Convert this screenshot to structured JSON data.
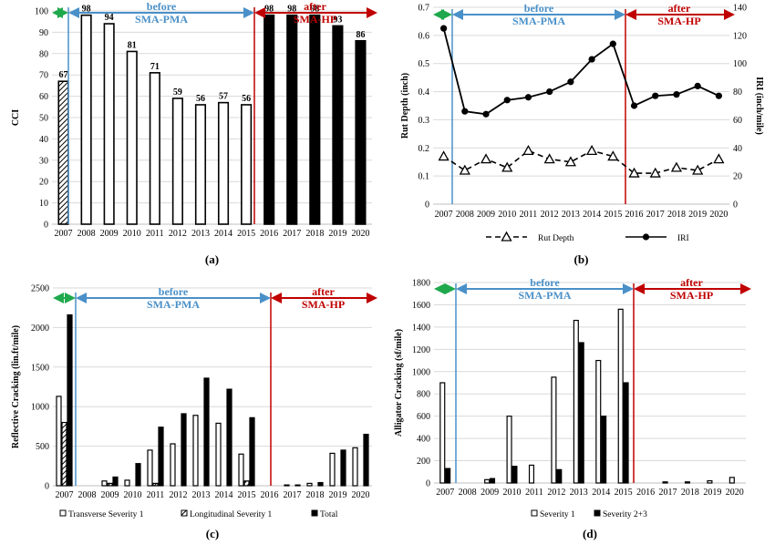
{
  "colors": {
    "green": "#1fa84c",
    "blue": "#4a90c8",
    "red": "#c00000"
  },
  "chart_data": [
    {
      "id": "a",
      "type": "bar",
      "panel_label": "(a)",
      "ylabel": "CCI",
      "ylim": [
        0,
        100
      ],
      "yticks": [
        "0",
        "10",
        "20",
        "30",
        "40",
        "50",
        "60",
        "70",
        "80",
        "90",
        "100"
      ],
      "categories": [
        "2007",
        "2008",
        "2009",
        "2010",
        "2011",
        "2012",
        "2013",
        "2014",
        "2015",
        "2016",
        "2017",
        "2018",
        "2019",
        "2020"
      ],
      "values": [
        67,
        98,
        94,
        81,
        71,
        59,
        56,
        57,
        56,
        98,
        98,
        98,
        93,
        86
      ],
      "value_labels": [
        "67",
        "98",
        "94",
        "81",
        "71",
        "59",
        "56",
        "57",
        "56",
        "98",
        "98",
        "98",
        "93",
        "86"
      ],
      "periods": {
        "before": [
          "before",
          "SMA-PMA"
        ],
        "after": [
          "after",
          "SMA-HP"
        ]
      }
    },
    {
      "id": "b",
      "type": "line",
      "panel_label": "(b)",
      "ylabel": "Rut Depth (inch)",
      "y2label": "IRI (inch/mile)",
      "ylim": [
        0,
        0.7
      ],
      "y2lim": [
        0,
        140
      ],
      "yticks": [
        "0",
        "0.1",
        "0.2",
        "0.3",
        "0.4",
        "0.5",
        "0.6",
        "0.7"
      ],
      "y2ticks": [
        "0",
        "20",
        "40",
        "60",
        "80",
        "100",
        "120",
        "140"
      ],
      "categories": [
        "2007",
        "2008",
        "2009",
        "2010",
        "2011",
        "2012",
        "2013",
        "2014",
        "2015",
        "2016",
        "2017",
        "2018",
        "2019",
        "2020"
      ],
      "series": [
        {
          "name": "Rut Depth",
          "axis": "left",
          "values": [
            0.17,
            0.12,
            0.16,
            0.13,
            0.19,
            0.16,
            0.15,
            0.19,
            0.17,
            0.11,
            0.11,
            0.13,
            0.12,
            0.16
          ]
        },
        {
          "name": "IRI",
          "axis": "right",
          "values": [
            125,
            66,
            64,
            74,
            76,
            80,
            87,
            103,
            114,
            70,
            77,
            78,
            84,
            77
          ]
        }
      ],
      "periods": {
        "before": [
          "before",
          "SMA-PMA"
        ],
        "after": [
          "after",
          "SMA-HP"
        ]
      }
    },
    {
      "id": "c",
      "type": "bar",
      "panel_label": "(c)",
      "ylabel": "Reflective Cracking (lin.ft/mile)",
      "ylim": [
        0,
        2500
      ],
      "yticks": [
        "0",
        "500",
        "1000",
        "1500",
        "2000",
        "2500"
      ],
      "categories": [
        "2007",
        "2008",
        "2009",
        "2010",
        "2011",
        "2012",
        "2013",
        "2014",
        "2015",
        "2016",
        "2017",
        "2018",
        "2019",
        "2020"
      ],
      "series": [
        {
          "name": "Transverse Severity 1",
          "values": [
            1130,
            0,
            60,
            70,
            450,
            530,
            890,
            790,
            400,
            0,
            10,
            30,
            410,
            480
          ]
        },
        {
          "name": "Longitudinal Severity 1",
          "values": [
            800,
            0,
            30,
            0,
            30,
            0,
            0,
            0,
            60,
            0,
            0,
            0,
            0,
            0
          ]
        },
        {
          "name": "Total",
          "values": [
            2160,
            0,
            110,
            280,
            740,
            910,
            1360,
            1220,
            860,
            0,
            10,
            40,
            450,
            650
          ]
        }
      ],
      "periods": {
        "before": [
          "before",
          "SMA-PMA"
        ],
        "after": [
          "after",
          "SMA-HP"
        ]
      }
    },
    {
      "id": "d",
      "type": "bar",
      "panel_label": "(d)",
      "ylabel": "Alligator Cracking (sf/mile)",
      "ylim": [
        0,
        1800
      ],
      "yticks": [
        "0",
        "200",
        "400",
        "600",
        "800",
        "1000",
        "1200",
        "1400",
        "1600",
        "1800"
      ],
      "categories": [
        "2007",
        "2008",
        "2009",
        "2010",
        "2011",
        "2012",
        "2013",
        "2014",
        "2015",
        "2016",
        "2017",
        "2018",
        "2019",
        "2020"
      ],
      "series": [
        {
          "name": "Severity 1",
          "values": [
            900,
            0,
            30,
            600,
            160,
            950,
            1460,
            1100,
            1560,
            0,
            10,
            10,
            20,
            50
          ]
        },
        {
          "name": "Severity 2+3",
          "values": [
            130,
            0,
            40,
            150,
            0,
            120,
            1260,
            600,
            900,
            0,
            0,
            0,
            0,
            0
          ]
        }
      ],
      "periods": {
        "before": [
          "before",
          "SMA-PMA"
        ],
        "after": [
          "after",
          "SMA-HP"
        ]
      }
    }
  ]
}
